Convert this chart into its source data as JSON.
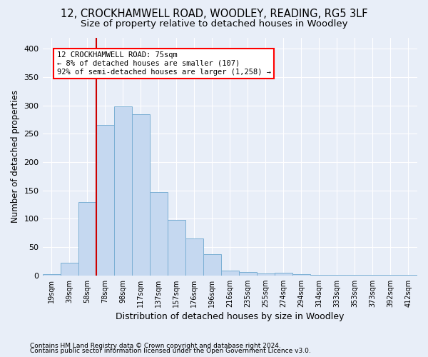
{
  "title1": "12, CROCKHAMWELL ROAD, WOODLEY, READING, RG5 3LF",
  "title2": "Size of property relative to detached houses in Woodley",
  "xlabel": "Distribution of detached houses by size in Woodley",
  "ylabel": "Number of detached properties",
  "footnote1": "Contains HM Land Registry data © Crown copyright and database right 2024.",
  "footnote2": "Contains public sector information licensed under the Open Government Licence v3.0.",
  "bin_labels": [
    "19sqm",
    "39sqm",
    "58sqm",
    "78sqm",
    "98sqm",
    "117sqm",
    "137sqm",
    "157sqm",
    "176sqm",
    "196sqm",
    "216sqm",
    "235sqm",
    "255sqm",
    "274sqm",
    "294sqm",
    "314sqm",
    "333sqm",
    "353sqm",
    "373sqm",
    "392sqm",
    "412sqm"
  ],
  "bar_heights": [
    2,
    22,
    130,
    265,
    298,
    285,
    147,
    98,
    65,
    38,
    9,
    6,
    4,
    5,
    2,
    1,
    1,
    1,
    1,
    1,
    1
  ],
  "bar_color": "#c5d8f0",
  "bar_edge_color": "#7bafd4",
  "vline_color": "#cc0000",
  "vline_pos": 3,
  "annotation_text": "12 CROCKHAMWELL ROAD: 75sqm\n← 8% of detached houses are smaller (107)\n92% of semi-detached houses are larger (1,258) →",
  "ylim": [
    0,
    420
  ],
  "yticks": [
    0,
    50,
    100,
    150,
    200,
    250,
    300,
    350,
    400
  ],
  "background_color": "#e8eef8",
  "grid_color": "#ffffff",
  "title1_fontsize": 10.5,
  "title2_fontsize": 9.5,
  "xlabel_fontsize": 9,
  "ylabel_fontsize": 8.5,
  "footnote_fontsize": 6.5
}
